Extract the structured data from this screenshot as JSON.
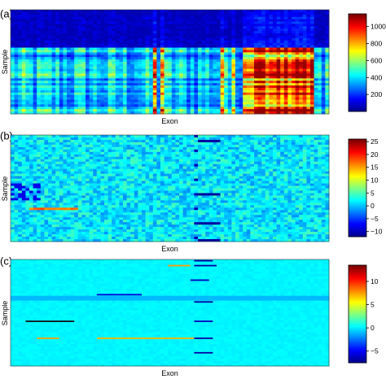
{
  "chart_data": [
    {
      "type": "heatmap",
      "panel_label": "(a)",
      "xlabel": "Exon",
      "ylabel": "Sample",
      "colorbar": {
        "range": [
          0,
          1150
        ],
        "ticks": [
          200,
          400,
          600,
          800,
          1000
        ],
        "tick_labels": [
          "200",
          "400",
          "600",
          "800",
          "1000"
        ]
      },
      "description_of_pattern": "Top ~40% of samples uniformly low; lower samples moderate-to-high with vertical streaks of high values at certain exons"
    },
    {
      "type": "heatmap",
      "panel_label": "(b)",
      "xlabel": "Exon",
      "ylabel": "Sample",
      "colorbar": {
        "range": [
          -12,
          26
        ],
        "ticks": [
          -10,
          -5,
          0,
          5,
          10,
          15,
          20,
          25
        ],
        "tick_labels": [
          "−10",
          "−5",
          "0",
          "5",
          "10",
          "15",
          "20",
          "25"
        ]
      },
      "description_of_pattern": "Mostly near-zero noise with a few short horizontal high/low segments"
    },
    {
      "type": "heatmap",
      "panel_label": "(c)",
      "xlabel": "Exon",
      "ylabel": "Sample",
      "colorbar": {
        "range": [
          -7.5,
          13.5
        ],
        "ticks": [
          -5,
          0,
          5,
          10
        ],
        "tick_labels": [
          "−5",
          "0",
          "5",
          "10"
        ]
      },
      "description_of_pattern": "Nearly constant background with sparse horizontal segments of high or low values"
    }
  ],
  "colormap": [
    "#00008f",
    "#0000ff",
    "#0080ff",
    "#00ffff",
    "#80ff80",
    "#ffff00",
    "#ff8000",
    "#ff0000",
    "#800000"
  ]
}
